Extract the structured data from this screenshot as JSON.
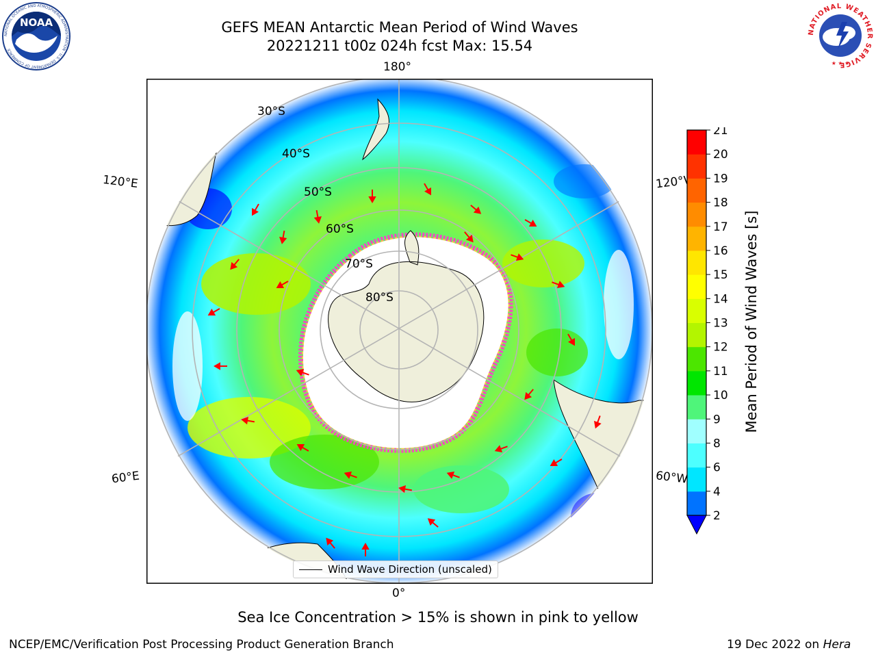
{
  "header": {
    "title_line1": "GEFS MEAN Antarctic Mean Period of Wind Waves",
    "title_line2": "20221211 t00z 024h fcst   Max: 15.54"
  },
  "logos": {
    "left": {
      "name": "NOAA",
      "text": "NOAA",
      "ring_text": "NATIONAL OCEANIC AND ATMOSPHERIC ADMINISTRATION · U.S. DEPARTMENT OF COMMERCE"
    },
    "right": {
      "name": "National Weather Service",
      "ring_text": "NATIONAL WEATHER SERVICE"
    }
  },
  "map": {
    "projection": "south-polar-stereographic",
    "longitude_labels": {
      "top": "180°",
      "bottom": "0°",
      "upper_left": "120°E",
      "upper_right": "120°W",
      "lower_left": "60°E",
      "lower_right": "60°W"
    },
    "latitude_labels": [
      "30°S",
      "40°S",
      "50°S",
      "60°S",
      "70°S",
      "80°S"
    ],
    "legend_label": "Wind Wave Direction (unscaled)",
    "colors": {
      "land": "#efefdb",
      "coastline": "#000000",
      "graticule": "#b4b4b4",
      "arrows": "#ff0000",
      "ice_pink": "#ff3cc8",
      "ice_yellow": "#ffd23c"
    }
  },
  "colorbar": {
    "label": "Mean Period of Wind Waves [s]",
    "ticks": [
      "2",
      "4",
      "6",
      "8",
      "9",
      "10",
      "11",
      "12",
      "13",
      "14",
      "15",
      "16",
      "17",
      "18",
      "19",
      "20",
      "21"
    ],
    "colors": [
      "#0000ff",
      "#0073ff",
      "#00e6ff",
      "#4dffff",
      "#a0ffff",
      "#4ff57a",
      "#00e600",
      "#4ce600",
      "#b3f500",
      "#d9ff00",
      "#ffff00",
      "#ffe600",
      "#ffb400",
      "#ff8c00",
      "#ff6400",
      "#ff3200",
      "#ff0000"
    ],
    "extend": "min"
  },
  "footer": {
    "note": "Sea Ice Concentration > 15% is shown in pink to yellow",
    "credit": "NCEP/EMC/Verification Post Processing Product Generation Branch",
    "date_text": "19 Dec 2022 on ",
    "host": "Hera"
  }
}
